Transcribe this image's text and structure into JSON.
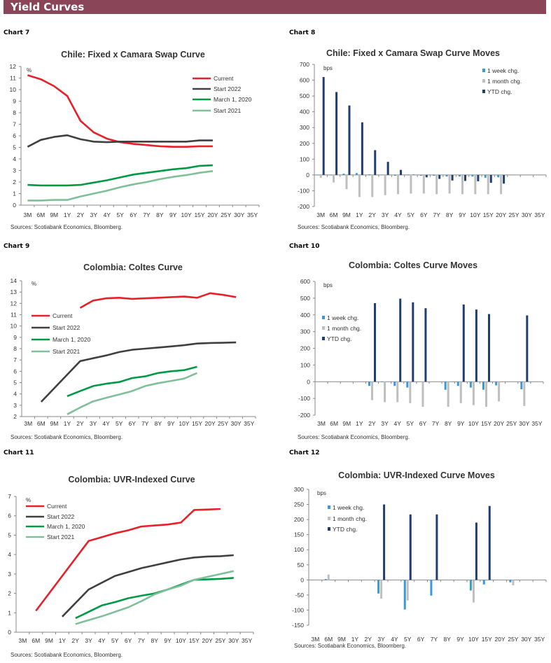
{
  "header": {
    "title": "Yield Curves"
  },
  "colors": {
    "header": "#8B4558",
    "current": "#E8202A",
    "start2022": "#404040",
    "march2020": "#009A44",
    "start2021": "#7FBF99",
    "week": "#3A9AD9",
    "month": "#BFBFBF",
    "ytd": "#1F3F73"
  },
  "chart_data": [
    {
      "label": "Chart 7",
      "type": "line",
      "title": "Chile: Fixed x Camara Swap Curve",
      "unit": "%",
      "source": "Sources: Scotiabank Economics, Bloomberg.",
      "ylim": [
        0,
        12
      ],
      "ystep": 1,
      "grid": false,
      "legend": "top-right",
      "categories": [
        "3M",
        "6M",
        "9M",
        "1Y",
        "2Y",
        "3Y",
        "4Y",
        "5Y",
        "6Y",
        "7Y",
        "8Y",
        "9Y",
        "10Y",
        "15Y",
        "20Y",
        "25Y",
        "30Y",
        "35Y"
      ],
      "series": [
        {
          "name": "Current",
          "color": "#E8202A",
          "values": [
            11.25,
            10.9,
            10.3,
            9.45,
            7.3,
            6.3,
            5.75,
            5.45,
            5.3,
            5.2,
            5.1,
            5.05,
            5.05,
            5.1,
            5.1,
            null,
            null,
            null
          ]
        },
        {
          "name": "Start 2022",
          "color": "#404040",
          "values": [
            5.05,
            5.65,
            5.9,
            6.05,
            5.7,
            5.5,
            5.45,
            5.5,
            5.5,
            5.5,
            5.5,
            5.5,
            5.5,
            5.6,
            5.6,
            null,
            null,
            null
          ]
        },
        {
          "name": "March 1, 2020",
          "color": "#009A44",
          "values": [
            1.75,
            1.7,
            1.7,
            1.7,
            1.75,
            1.95,
            2.15,
            2.4,
            2.65,
            2.8,
            2.95,
            3.1,
            3.2,
            3.4,
            3.45,
            null,
            null,
            null
          ]
        },
        {
          "name": "Start 2021",
          "color": "#7FBF99",
          "values": [
            0.4,
            0.4,
            0.45,
            0.45,
            0.75,
            1.0,
            1.25,
            1.55,
            1.8,
            2.0,
            2.25,
            2.45,
            2.6,
            2.8,
            2.95,
            null,
            null,
            null
          ]
        }
      ]
    },
    {
      "label": "Chart 8",
      "type": "bar",
      "title": "Chile: Fixed x Camara Swap Curve Moves",
      "unit": "bps",
      "source": "Sources: Scotiabank Economics, Bloomberg.",
      "ylim": [
        -200,
        700
      ],
      "ystep": 100,
      "grid": false,
      "legend": "top-right",
      "categories": [
        "3M",
        "6M",
        "9M",
        "1Y",
        "2Y",
        "3Y",
        "4Y",
        "5Y",
        "6Y",
        "7Y",
        "8Y",
        "9Y",
        "10Y",
        "15Y",
        "20Y",
        "25Y",
        "30Y",
        "35Y"
      ],
      "series": [
        {
          "name": "1 week chg.",
          "color": "#3A9AD9",
          "values": [
            0,
            0,
            8,
            12,
            4,
            2,
            -5,
            3,
            -5,
            -5,
            -10,
            -10,
            -10,
            -18,
            -15,
            null,
            null,
            null
          ]
        },
        {
          "name": "1 month chg.",
          "color": "#BFBFBF",
          "values": [
            -18,
            -48,
            -90,
            -140,
            -140,
            -128,
            -122,
            -118,
            -118,
            -122,
            -118,
            -122,
            -122,
            -122,
            -122,
            null,
            null,
            null
          ]
        },
        {
          "name": "YTD chg.",
          "color": "#1F3F73",
          "values": [
            620,
            525,
            440,
            333,
            157,
            83,
            32,
            2,
            -15,
            -25,
            -35,
            -38,
            -40,
            -50,
            -55,
            null,
            null,
            null
          ]
        }
      ]
    },
    {
      "label": "Chart 9",
      "type": "line",
      "title": "Colombia: Coltes Curve",
      "unit": "%",
      "source": "Sources: Scotiabank Economics, Bloomberg.",
      "ylim": [
        2,
        14
      ],
      "ystep": 1,
      "grid": false,
      "legend": "left",
      "categories": [
        "3M",
        "6M",
        "9M",
        "1Y",
        "2Y",
        "3Y",
        "4Y",
        "5Y",
        "6Y",
        "7Y",
        "8Y",
        "9Y",
        "10Y",
        "15Y",
        "20Y",
        "25Y",
        "30Y",
        "35Y"
      ],
      "series": [
        {
          "name": "Current",
          "color": "#E8202A",
          "values": [
            null,
            null,
            null,
            null,
            11.6,
            12.25,
            12.45,
            12.5,
            12.4,
            12.45,
            12.5,
            12.55,
            12.6,
            12.5,
            12.9,
            12.75,
            12.55,
            null
          ]
        },
        {
          "name": "Start 2022",
          "color": "#404040",
          "values": [
            null,
            3.3,
            null,
            null,
            6.9,
            7.15,
            7.4,
            7.7,
            7.9,
            8.0,
            8.1,
            8.2,
            8.3,
            8.45,
            8.5,
            8.52,
            8.55,
            null
          ]
        },
        {
          "name": "March 1, 2020",
          "color": "#009A44",
          "values": [
            null,
            null,
            null,
            3.8,
            4.25,
            4.7,
            4.9,
            5.05,
            5.4,
            5.55,
            5.85,
            6.0,
            6.1,
            6.4,
            null,
            null,
            null,
            null
          ]
        },
        {
          "name": "Start 2021",
          "color": "#7FBF99",
          "values": [
            null,
            null,
            null,
            2.2,
            2.8,
            3.35,
            3.65,
            3.95,
            4.25,
            4.7,
            4.95,
            5.15,
            5.35,
            5.85,
            null,
            null,
            null,
            null
          ]
        }
      ]
    },
    {
      "label": "Chart 10",
      "type": "bar",
      "title": "Colombia: Coltes Curve Moves",
      "unit": "bps",
      "source": "Sources: Scotiabank Economics, Bloomberg.",
      "ylim": [
        -200,
        600
      ],
      "ystep": 100,
      "grid": false,
      "legend": "left",
      "categories": [
        "3M",
        "6M",
        "9M",
        "1Y",
        "2Y",
        "3Y",
        "4Y",
        "5Y",
        "6Y",
        "7Y",
        "8Y",
        "9Y",
        "10Y",
        "15Y",
        "20Y",
        "25Y",
        "30Y",
        "35Y"
      ],
      "series": [
        {
          "name": "1 week chg.",
          "color": "#3A9AD9",
          "values": [
            null,
            null,
            null,
            null,
            -25,
            -2,
            -25,
            -35,
            null,
            null,
            -48,
            -25,
            -35,
            -48,
            -22,
            null,
            -45,
            null
          ]
        },
        {
          "name": "1 month chg.",
          "color": "#BFBFBF",
          "values": [
            null,
            null,
            null,
            null,
            -110,
            -122,
            -122,
            -128,
            -150,
            null,
            -150,
            -128,
            -140,
            -150,
            -118,
            null,
            -145,
            null
          ]
        },
        {
          "name": "YTD chg.",
          "color": "#1F3F73",
          "values": [
            null,
            null,
            null,
            null,
            470,
            null,
            497,
            475,
            440,
            null,
            null,
            462,
            432,
            405,
            null,
            null,
            397,
            null
          ]
        }
      ]
    },
    {
      "label": "Chart 11",
      "type": "line",
      "title": "Colombia: UVR-Indexed Curve",
      "unit": "%",
      "source": "Sources: Scotiabank Economics, Bloomberg.",
      "ylim": [
        0,
        7
      ],
      "ystep": 1,
      "grid": false,
      "legend": "top-left",
      "categories": [
        "3M",
        "6M",
        "9M",
        "1Y",
        "2Y",
        "3Y",
        "4Y",
        "5Y",
        "6Y",
        "7Y",
        "8Y",
        "9Y",
        "10Y",
        "15Y",
        "20Y",
        "25Y",
        "30Y",
        "35Y"
      ],
      "series": [
        {
          "name": "Current",
          "color": "#E8202A",
          "values": [
            null,
            1.1,
            null,
            null,
            null,
            4.7,
            4.9,
            5.1,
            5.25,
            5.45,
            5.5,
            5.55,
            5.65,
            6.3,
            6.32,
            6.35,
            null,
            null
          ]
        },
        {
          "name": "Start 2022",
          "color": "#404040",
          "values": [
            null,
            null,
            null,
            0.8,
            null,
            2.2,
            2.55,
            2.9,
            3.1,
            3.3,
            3.45,
            3.6,
            3.75,
            3.85,
            3.9,
            3.92,
            3.97,
            null
          ]
        },
        {
          "name": "March 1, 2020",
          "color": "#009A44",
          "values": [
            null,
            null,
            null,
            null,
            0.72,
            1.05,
            1.38,
            1.55,
            1.75,
            1.88,
            2.0,
            2.2,
            2.45,
            2.7,
            2.72,
            2.75,
            2.8,
            null
          ]
        },
        {
          "name": "Start 2021",
          "color": "#7FBF99",
          "values": [
            null,
            null,
            null,
            null,
            0.42,
            0.62,
            0.82,
            1.05,
            1.28,
            1.6,
            1.95,
            2.2,
            2.4,
            2.7,
            2.85,
            3.0,
            3.15,
            null
          ]
        }
      ]
    },
    {
      "label": "Chart 12",
      "type": "bar",
      "title": "Colombia: UVR-Indexed Curve Moves",
      "unit": "bps",
      "source": "Sources: Scotiabank Economics, Bloomberg.",
      "ylim": [
        -150,
        300
      ],
      "ystep": 50,
      "grid": false,
      "legend": "top-left",
      "categories": [
        "3M",
        "6M",
        "9M",
        "1Y",
        "2Y",
        "3Y",
        "4Y",
        "5Y",
        "6Y",
        "7Y",
        "8Y",
        "9Y",
        "10Y",
        "15Y",
        "20Y",
        "25Y",
        "30Y",
        "35Y"
      ],
      "series": [
        {
          "name": "1 week chg.",
          "color": "#3A9AD9",
          "values": [
            null,
            3,
            null,
            null,
            null,
            -45,
            null,
            -98,
            null,
            -52,
            null,
            null,
            -35,
            -15,
            null,
            -8,
            null,
            null
          ]
        },
        {
          "name": "1 month chg.",
          "color": "#BFBFBF",
          "values": [
            null,
            18,
            null,
            null,
            null,
            -62,
            null,
            -68,
            null,
            null,
            null,
            null,
            -75,
            null,
            null,
            -18,
            null,
            null
          ]
        },
        {
          "name": "YTD chg.",
          "color": "#1F3F73",
          "values": [
            null,
            null,
            null,
            null,
            null,
            250,
            null,
            217,
            null,
            217,
            null,
            null,
            190,
            245,
            null,
            null,
            null,
            null
          ]
        }
      ]
    }
  ]
}
